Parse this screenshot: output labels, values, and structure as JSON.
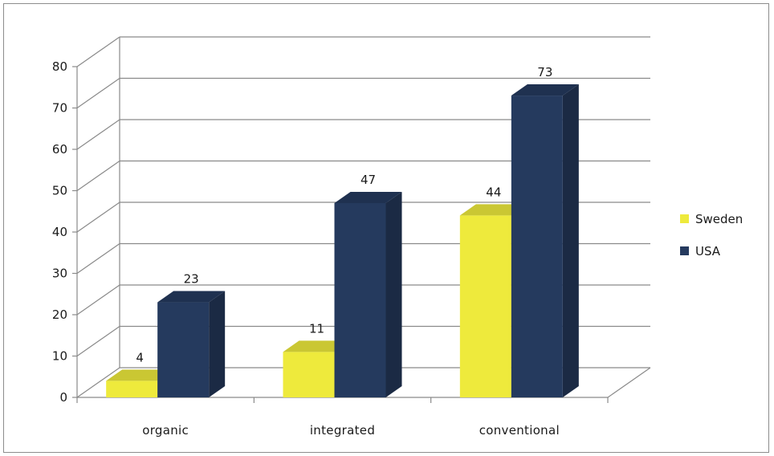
{
  "chart_data": {
    "type": "bar",
    "categories": [
      "organic",
      "integrated",
      "conventional"
    ],
    "series": [
      {
        "name": "Sweden",
        "values": [
          4,
          11,
          44
        ],
        "color": "#eeea3c"
      },
      {
        "name": "USA",
        "values": [
          23,
          47,
          73
        ],
        "color": "#253a5e"
      }
    ],
    "ylim": [
      0,
      80
    ],
    "yticks": [
      0,
      10,
      20,
      30,
      40,
      50,
      60,
      70,
      80
    ],
    "grid": true,
    "legend": "right",
    "style": "3d-clustered-column"
  }
}
